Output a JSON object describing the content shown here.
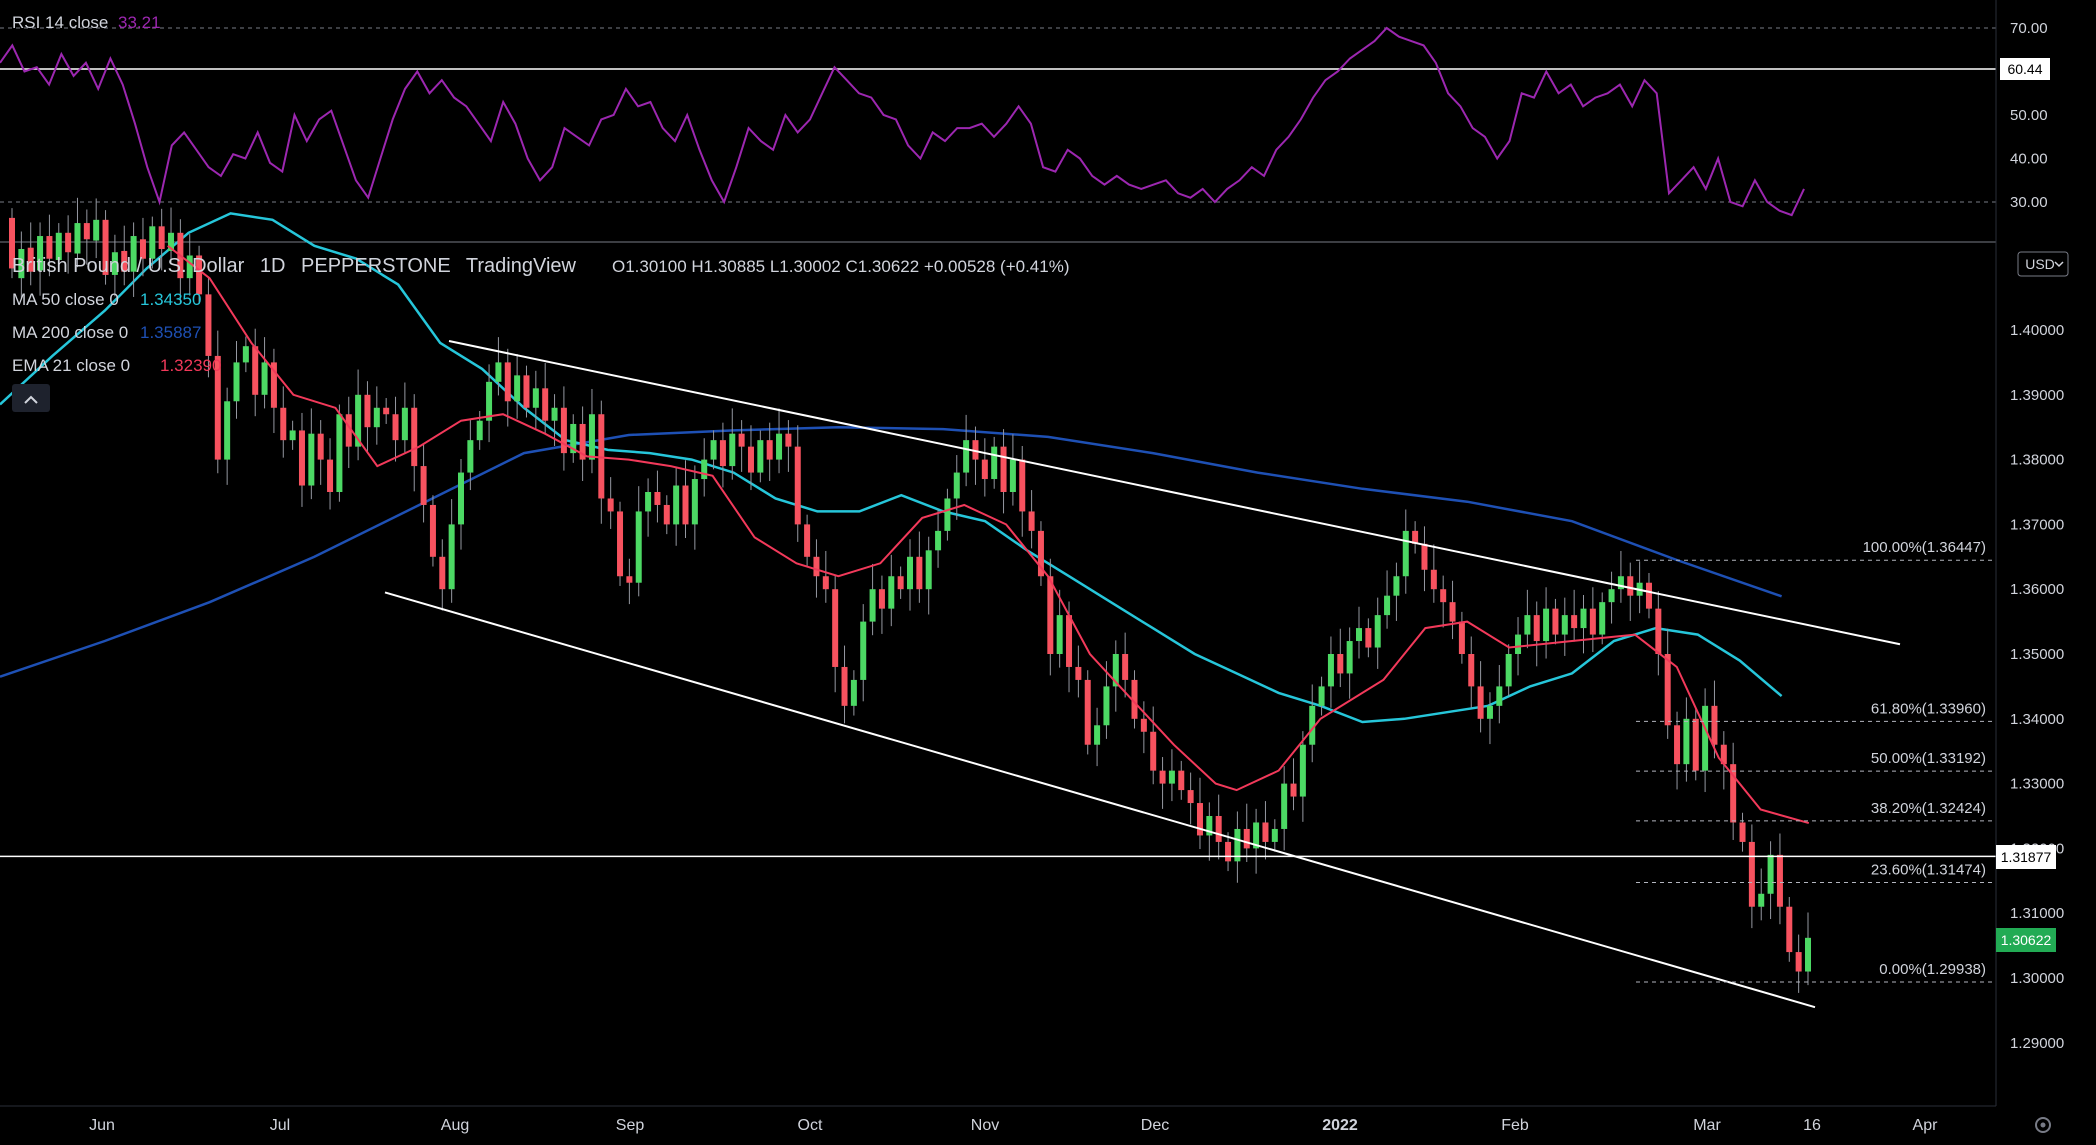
{
  "header": {
    "symbol": "British Pound / U.S. Dollar",
    "interval": "1D",
    "exchange": "PEPPERSTONE",
    "platform": "TradingView",
    "ohlc": "O1.30100 H1.30885 L1.30002 C1.30622 +0.00528 (+0.41%)"
  },
  "indicators": [
    {
      "label": "MA 50 close 0",
      "value": "1.34350",
      "color": "#26c6da"
    },
    {
      "label": "MA 200 close 0",
      "value": "1.35887",
      "color": "#1e50b4"
    },
    {
      "label": "EMA 21 close 0",
      "value": "1.32390",
      "color": "#f2395a"
    }
  ],
  "rsi": {
    "label": "RSI 14 close",
    "value": "33.21",
    "color": "#9c27b0",
    "level_line": "60.44"
  },
  "currency_button": "USD",
  "collapse_button": "^",
  "colors": {
    "up": "#4cd964",
    "down": "#f7525f",
    "ma50": "#26c6da",
    "ma200": "#1e50b4",
    "ema21": "#f2395a",
    "rsi": "#9c27b0"
  },
  "chart_data": {
    "type": "candlestick",
    "price_ticks": [
      "1.40000",
      "1.39000",
      "1.38000",
      "1.37000",
      "1.36000",
      "1.35000",
      "1.34000",
      "1.33000",
      "1.32000",
      "1.31000",
      "1.30000",
      "1.29000"
    ],
    "rsi_ticks": [
      "70.00",
      "50.00",
      "40.00",
      "30.00"
    ],
    "x_ticks": [
      "Jun",
      "Jul",
      "Aug",
      "Sep",
      "Oct",
      "Nov",
      "Dec",
      "2022",
      "Feb",
      "Mar",
      "16",
      "Apr"
    ],
    "fib_levels": [
      {
        "label": "100.00%(1.36447)",
        "price": 1.36447
      },
      {
        "label": "61.80%(1.33960)",
        "price": 1.3396
      },
      {
        "label": "50.00%(1.33192)",
        "price": 1.33192
      },
      {
        "label": "38.20%(1.32424)",
        "price": 1.32424
      },
      {
        "label": "23.60%(1.31474)",
        "price": 1.31474
      },
      {
        "label": "0.00%(1.29938)",
        "price": 1.29938
      }
    ],
    "horizontal_line": {
      "price": "1.31877"
    },
    "last_price": "1.30622",
    "channel": {
      "upper": [
        [
          "2021-07-31",
          1.3983
        ],
        [
          "2022-03-31",
          1.3515
        ]
      ],
      "lower": [
        [
          "2021-07-21",
          1.3595
        ],
        [
          "2022-03-16",
          1.2955
        ]
      ]
    },
    "candles": [
      [
        1.4173,
        1.4095
      ],
      [
        1.408,
        1.4125
      ],
      [
        1.4127,
        1.409
      ],
      [
        1.4092,
        1.4145
      ],
      [
        1.4145,
        1.411
      ],
      [
        1.4108,
        1.415
      ],
      [
        1.415,
        1.412
      ],
      [
        1.4118,
        1.4165
      ],
      [
        1.4165,
        1.414
      ],
      [
        1.4138,
        1.417
      ],
      [
        1.417,
        1.4085
      ],
      [
        1.4085,
        1.412
      ],
      [
        1.4122,
        1.409
      ],
      [
        1.409,
        1.4145
      ],
      [
        1.414,
        1.411
      ],
      [
        1.411,
        1.416
      ],
      [
        1.416,
        1.4125
      ],
      [
        1.4122,
        1.415
      ],
      [
        1.415,
        1.408
      ],
      [
        1.408,
        1.4115
      ],
      [
        1.4115,
        1.4055
      ],
      [
        1.4055,
        1.396
      ],
      [
        1.396,
        1.38
      ],
      [
        1.38,
        1.389
      ],
      [
        1.389,
        1.395
      ],
      [
        1.395,
        1.3975
      ],
      [
        1.3975,
        1.39
      ],
      [
        1.39,
        1.395
      ],
      [
        1.395,
        1.388
      ],
      [
        1.388,
        1.383
      ],
      [
        1.383,
        1.3845
      ],
      [
        1.3845,
        1.376
      ],
      [
        1.376,
        1.384
      ],
      [
        1.384,
        1.38
      ],
      [
        1.38,
        1.375
      ],
      [
        1.375,
        1.387
      ],
      [
        1.387,
        1.382
      ],
      [
        1.382,
        1.39
      ],
      [
        1.39,
        1.385
      ],
      [
        1.385,
        1.388
      ],
      [
        1.388,
        1.387
      ],
      [
        1.387,
        1.383
      ],
      [
        1.383,
        1.388
      ],
      [
        1.388,
        1.379
      ],
      [
        1.379,
        1.373
      ],
      [
        1.373,
        1.365
      ],
      [
        1.365,
        1.36
      ],
      [
        1.36,
        1.37
      ],
      [
        1.37,
        1.378
      ],
      [
        1.378,
        1.383
      ],
      [
        1.383,
        1.386
      ],
      [
        1.386,
        1.392
      ],
      [
        1.392,
        1.395
      ],
      [
        1.395,
        1.389
      ],
      [
        1.389,
        1.393
      ],
      [
        1.393,
        1.388
      ],
      [
        1.388,
        1.391
      ],
      [
        1.391,
        1.386
      ],
      [
        1.386,
        1.388
      ],
      [
        1.388,
        1.381
      ],
      [
        1.381,
        1.3855
      ],
      [
        1.3855,
        1.38
      ],
      [
        1.38,
        1.387
      ],
      [
        1.387,
        1.374
      ],
      [
        1.374,
        1.372
      ],
      [
        1.372,
        1.362
      ],
      [
        1.362,
        1.361
      ],
      [
        1.361,
        1.372
      ],
      [
        1.372,
        1.375
      ],
      [
        1.375,
        1.373
      ],
      [
        1.373,
        1.37
      ],
      [
        1.37,
        1.376
      ],
      [
        1.376,
        1.37
      ],
      [
        1.37,
        1.377
      ],
      [
        1.377,
        1.38
      ],
      [
        1.38,
        1.383
      ],
      [
        1.383,
        1.379
      ],
      [
        1.379,
        1.384
      ],
      [
        1.384,
        1.382
      ],
      [
        1.382,
        1.378
      ],
      [
        1.378,
        1.383
      ],
      [
        1.383,
        1.38
      ],
      [
        1.38,
        1.384
      ],
      [
        1.384,
        1.382
      ],
      [
        1.382,
        1.37
      ],
      [
        1.37,
        1.365
      ],
      [
        1.365,
        1.362
      ],
      [
        1.362,
        1.36
      ],
      [
        1.36,
        1.348
      ],
      [
        1.348,
        1.342
      ],
      [
        1.342,
        1.346
      ],
      [
        1.346,
        1.355
      ],
      [
        1.355,
        1.36
      ],
      [
        1.36,
        1.357
      ],
      [
        1.357,
        1.362
      ],
      [
        1.362,
        1.36
      ],
      [
        1.36,
        1.365
      ],
      [
        1.365,
        1.36
      ],
      [
        1.36,
        1.366
      ],
      [
        1.366,
        1.369
      ],
      [
        1.369,
        1.374
      ],
      [
        1.374,
        1.378
      ],
      [
        1.378,
        1.383
      ],
      [
        1.383,
        1.38
      ],
      [
        1.38,
        1.377
      ],
      [
        1.377,
        1.382
      ],
      [
        1.382,
        1.375
      ],
      [
        1.375,
        1.38
      ],
      [
        1.38,
        1.372
      ],
      [
        1.372,
        1.369
      ],
      [
        1.369,
        1.362
      ],
      [
        1.362,
        1.35
      ],
      [
        1.35,
        1.356
      ],
      [
        1.356,
        1.348
      ],
      [
        1.348,
        1.346
      ],
      [
        1.346,
        1.336
      ],
      [
        1.336,
        1.339
      ],
      [
        1.339,
        1.345
      ],
      [
        1.345,
        1.35
      ],
      [
        1.35,
        1.346
      ],
      [
        1.346,
        1.34
      ],
      [
        1.34,
        1.338
      ],
      [
        1.338,
        1.332
      ],
      [
        1.332,
        1.33
      ],
      [
        1.33,
        1.332
      ],
      [
        1.332,
        1.329
      ],
      [
        1.329,
        1.327
      ],
      [
        1.327,
        1.322
      ],
      [
        1.322,
        1.325
      ],
      [
        1.325,
        1.321
      ],
      [
        1.321,
        1.318
      ],
      [
        1.318,
        1.323
      ],
      [
        1.323,
        1.32
      ],
      [
        1.32,
        1.324
      ],
      [
        1.324,
        1.321
      ],
      [
        1.321,
        1.323
      ],
      [
        1.323,
        1.33
      ],
      [
        1.33,
        1.328
      ],
      [
        1.328,
        1.336
      ],
      [
        1.336,
        1.342
      ],
      [
        1.342,
        1.345
      ],
      [
        1.345,
        1.35
      ],
      [
        1.35,
        1.347
      ],
      [
        1.347,
        1.352
      ],
      [
        1.352,
        1.354
      ],
      [
        1.354,
        1.351
      ],
      [
        1.351,
        1.356
      ],
      [
        1.356,
        1.359
      ],
      [
        1.359,
        1.362
      ],
      [
        1.362,
        1.369
      ],
      [
        1.369,
        1.367
      ],
      [
        1.367,
        1.363
      ],
      [
        1.363,
        1.36
      ],
      [
        1.36,
        1.358
      ],
      [
        1.358,
        1.355
      ],
      [
        1.355,
        1.35
      ],
      [
        1.35,
        1.345
      ],
      [
        1.345,
        1.34
      ],
      [
        1.34,
        1.342
      ],
      [
        1.342,
        1.345
      ],
      [
        1.345,
        1.35
      ],
      [
        1.35,
        1.353
      ],
      [
        1.353,
        1.356
      ],
      [
        1.356,
        1.352
      ],
      [
        1.352,
        1.357
      ],
      [
        1.357,
        1.353
      ],
      [
        1.353,
        1.356
      ],
      [
        1.356,
        1.354
      ],
      [
        1.354,
        1.357
      ],
      [
        1.357,
        1.353
      ],
      [
        1.353,
        1.358
      ],
      [
        1.358,
        1.36
      ],
      [
        1.36,
        1.362
      ],
      [
        1.362,
        1.359
      ],
      [
        1.359,
        1.361
      ],
      [
        1.361,
        1.357
      ],
      [
        1.357,
        1.35
      ],
      [
        1.35,
        1.339
      ],
      [
        1.339,
        1.333
      ],
      [
        1.333,
        1.34
      ],
      [
        1.34,
        1.332
      ],
      [
        1.332,
        1.342
      ],
      [
        1.342,
        1.336
      ],
      [
        1.336,
        1.333
      ],
      [
        1.333,
        1.324
      ],
      [
        1.324,
        1.321
      ],
      [
        1.321,
        1.311
      ],
      [
        1.311,
        1.313
      ],
      [
        1.313,
        1.319
      ],
      [
        1.319,
        1.311
      ],
      [
        1.311,
        1.304
      ],
      [
        1.304,
        1.301
      ],
      [
        1.301,
        1.3062
      ]
    ],
    "ma50": [
      [
        0,
        1.3885
      ],
      [
        0.025,
        1.396
      ],
      [
        0.05,
        1.403
      ],
      [
        0.07,
        1.4095
      ],
      [
        0.09,
        1.415
      ],
      [
        0.11,
        1.418
      ],
      [
        0.13,
        1.417
      ],
      [
        0.15,
        1.413
      ],
      [
        0.17,
        1.411
      ],
      [
        0.19,
        1.407
      ],
      [
        0.21,
        1.398
      ],
      [
        0.23,
        1.394
      ],
      [
        0.25,
        1.388
      ],
      [
        0.27,
        1.383
      ],
      [
        0.29,
        1.3815
      ],
      [
        0.31,
        1.381
      ],
      [
        0.33,
        1.38
      ],
      [
        0.35,
        1.378
      ],
      [
        0.37,
        1.374
      ],
      [
        0.39,
        1.372
      ],
      [
        0.41,
        1.372
      ],
      [
        0.43,
        1.3745
      ],
      [
        0.45,
        1.372
      ],
      [
        0.47,
        1.3705
      ],
      [
        0.49,
        1.366
      ],
      [
        0.51,
        1.362
      ],
      [
        0.53,
        1.358
      ],
      [
        0.55,
        1.354
      ],
      [
        0.57,
        1.35
      ],
      [
        0.59,
        1.347
      ],
      [
        0.61,
        1.344
      ],
      [
        0.63,
        1.342
      ],
      [
        0.65,
        1.3395
      ],
      [
        0.67,
        1.34
      ],
      [
        0.69,
        1.341
      ],
      [
        0.71,
        1.342
      ],
      [
        0.73,
        1.345
      ],
      [
        0.75,
        1.347
      ],
      [
        0.77,
        1.352
      ],
      [
        0.79,
        1.354
      ],
      [
        0.81,
        1.353
      ],
      [
        0.83,
        1.349
      ],
      [
        0.85,
        1.3435
      ]
    ],
    "ma200": [
      [
        0,
        1.3465
      ],
      [
        0.05,
        1.352
      ],
      [
        0.1,
        1.358
      ],
      [
        0.15,
        1.365
      ],
      [
        0.2,
        1.373
      ],
      [
        0.25,
        1.381
      ],
      [
        0.3,
        1.3838
      ],
      [
        0.35,
        1.3845
      ],
      [
        0.4,
        1.385
      ],
      [
        0.45,
        1.3847
      ],
      [
        0.5,
        1.3835
      ],
      [
        0.55,
        1.381
      ],
      [
        0.6,
        1.378
      ],
      [
        0.65,
        1.3755
      ],
      [
        0.7,
        1.3735
      ],
      [
        0.75,
        1.3705
      ],
      [
        0.8,
        1.3645
      ],
      [
        0.85,
        1.3589
      ]
    ],
    "ema21": [
      [
        0.08,
        1.413
      ],
      [
        0.1,
        1.408
      ],
      [
        0.12,
        1.398
      ],
      [
        0.14,
        1.39
      ],
      [
        0.16,
        1.388
      ],
      [
        0.18,
        1.379
      ],
      [
        0.2,
        1.382
      ],
      [
        0.22,
        1.386
      ],
      [
        0.24,
        1.387
      ],
      [
        0.26,
        1.384
      ],
      [
        0.28,
        1.3805
      ],
      [
        0.3,
        1.38
      ],
      [
        0.32,
        1.379
      ],
      [
        0.34,
        1.3775
      ],
      [
        0.36,
        1.368
      ],
      [
        0.38,
        1.364
      ],
      [
        0.4,
        1.362
      ],
      [
        0.42,
        1.364
      ],
      [
        0.44,
        1.371
      ],
      [
        0.46,
        1.373
      ],
      [
        0.48,
        1.37
      ],
      [
        0.5,
        1.362
      ],
      [
        0.52,
        1.35
      ],
      [
        0.54,
        1.343
      ],
      [
        0.56,
        1.336
      ],
      [
        0.58,
        1.33
      ],
      [
        0.59,
        1.329
      ],
      [
        0.61,
        1.332
      ],
      [
        0.63,
        1.34
      ],
      [
        0.66,
        1.346
      ],
      [
        0.68,
        1.354
      ],
      [
        0.7,
        1.355
      ],
      [
        0.72,
        1.351
      ],
      [
        0.75,
        1.352
      ],
      [
        0.78,
        1.353
      ],
      [
        0.8,
        1.348
      ],
      [
        0.82,
        1.334
      ],
      [
        0.84,
        1.326
      ],
      [
        0.863,
        1.3239
      ]
    ],
    "rsi_values": [
      62,
      66,
      60,
      61,
      57,
      64,
      59,
      62,
      56,
      63,
      57,
      48,
      38,
      30,
      43,
      46,
      42,
      38,
      36,
      41,
      40,
      46,
      39,
      37,
      50,
      44,
      49,
      51,
      43,
      35,
      31,
      40,
      49,
      56,
      60,
      55,
      58,
      54,
      52,
      48,
      44,
      53,
      48,
      40,
      35,
      38,
      47,
      45,
      43,
      49,
      50,
      56,
      52,
      53,
      47,
      44,
      50,
      42,
      35,
      30,
      38,
      47,
      44,
      42,
      50,
      46,
      49,
      55,
      61,
      58,
      55,
      54,
      50,
      49,
      43,
      40,
      46,
      44,
      47,
      47,
      48,
      45,
      48,
      52,
      48,
      38,
      37,
      42,
      40,
      36,
      34,
      36,
      34,
      33,
      34,
      35,
      32,
      31,
      33,
      30,
      33,
      35,
      38,
      36,
      42,
      45,
      49,
      54,
      58,
      60,
      63,
      65,
      67,
      70,
      68,
      67,
      66,
      62,
      55,
      52,
      47,
      45,
      40,
      44,
      55,
      54,
      60,
      55,
      57,
      52,
      54,
      55,
      57,
      52,
      58,
      55,
      32,
      35,
      38,
      33,
      40,
      30,
      29,
      35,
      30,
      28,
      27,
      33
    ]
  }
}
